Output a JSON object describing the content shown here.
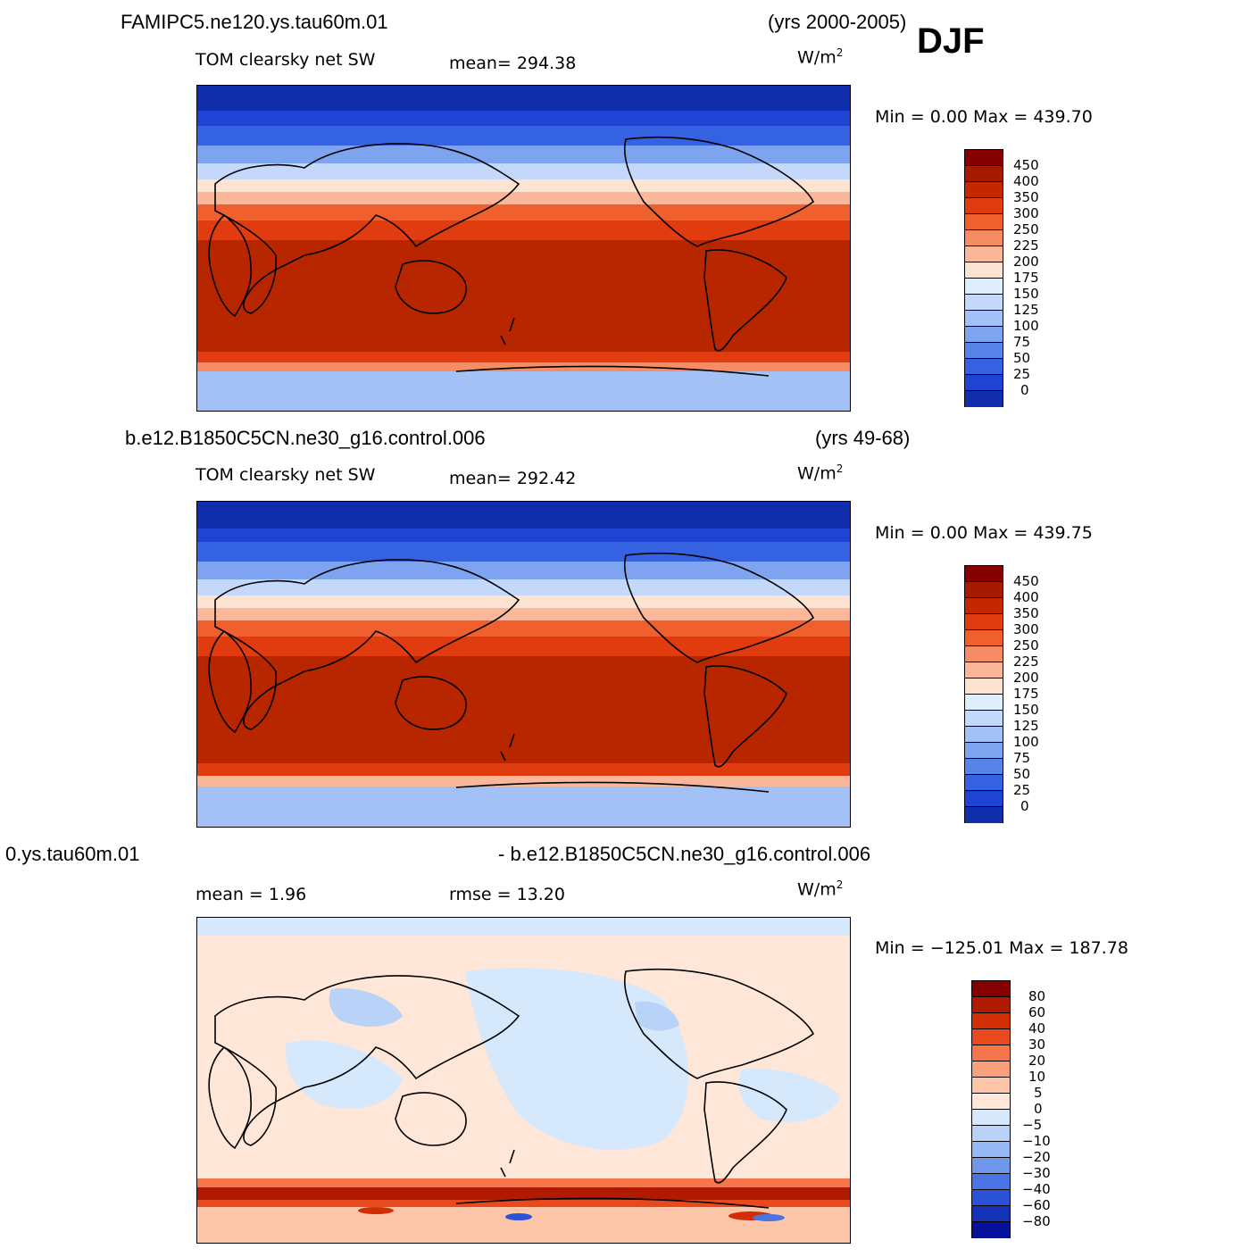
{
  "season": "DJF",
  "panels": [
    {
      "case": "FAMIPC5.ne120.ys.tau60m.01",
      "years": "(yrs 2000-2005)",
      "variable": "TOM clearsky net SW",
      "stat": "mean=  294.38",
      "units": "W/m",
      "minmax": "Min =    0.00 Max =  439.70"
    },
    {
      "case": "b.e12.B1850C5CN.ne30_g16.control.006",
      "years": "(yrs 49-68)",
      "variable": "TOM clearsky net SW",
      "stat": "mean=  292.42",
      "units": "W/m",
      "minmax": "Min =    0.00 Max =  439.75"
    },
    {
      "case": "0.ys.tau60m.01",
      "years": "- b.e12.B1850C5CN.ne30_g16.control.006",
      "variable": "mean =    1.96",
      "stat": "rmse =   13.20",
      "units": "W/m",
      "minmax": "Min = −125.01 Max =  187.78"
    }
  ],
  "units_exponent": "2",
  "colorbar_abs": {
    "labels": [
      "450",
      "400",
      "350",
      "300",
      "250",
      "225",
      "200",
      "175",
      "150",
      "125",
      "100",
      "75",
      "50",
      "25",
      "0"
    ],
    "colors": [
      "#870000",
      "#a61a00",
      "#c42800",
      "#e03c10",
      "#f0602e",
      "#f58c64",
      "#fbb79a",
      "#fde4d2",
      "#dfeefc",
      "#c4d9fa",
      "#a3c1f6",
      "#7ea4f0",
      "#5883e9",
      "#3562e0",
      "#1f44d3",
      "#102dac"
    ]
  },
  "colorbar_diff": {
    "labels": [
      "80",
      "60",
      "40",
      "30",
      "20",
      "10",
      "5",
      "0",
      "−5",
      "−10",
      "−20",
      "−30",
      "−40",
      "−60",
      "−80"
    ],
    "colors": [
      "#870000",
      "#b01a00",
      "#d12e05",
      "#e84a1e",
      "#f4764a",
      "#f9a07a",
      "#fcc5a8",
      "#fee7d8",
      "#d6e8fc",
      "#b8d2f8",
      "#95b7f3",
      "#6f97ec",
      "#4a74e3",
      "#2a52d8",
      "#1432b8",
      "#07109a"
    ]
  }
}
